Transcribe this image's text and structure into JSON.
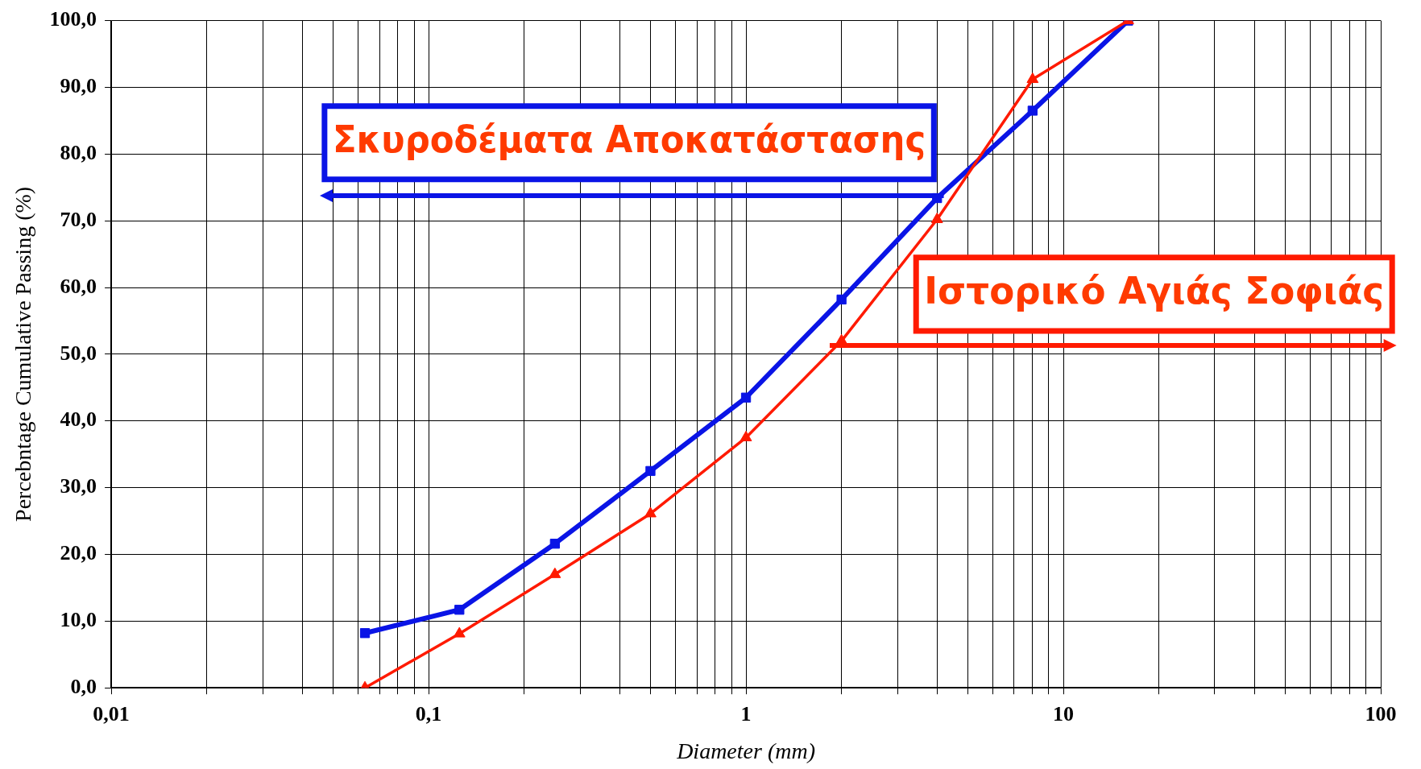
{
  "chart_data": {
    "type": "line",
    "xlabel": "Diameter (mm)",
    "ylabel": "Percebntage Cumulative Passing (%)",
    "log": "x",
    "grid": true,
    "legend": false,
    "line_style": "solid",
    "xlim": [
      0.01,
      100
    ],
    "xticks": [
      {
        "value": 0.01,
        "label": "0,01"
      },
      {
        "value": 0.02,
        "label": null
      },
      {
        "value": 0.03,
        "label": null
      },
      {
        "value": 0.04,
        "label": null
      },
      {
        "value": 0.05,
        "label": null
      },
      {
        "value": 0.06,
        "label": null
      },
      {
        "value": 0.07,
        "label": null
      },
      {
        "value": 0.08,
        "label": null
      },
      {
        "value": 0.09,
        "label": null
      },
      {
        "value": 0.1,
        "label": "0,1"
      },
      {
        "value": 0.2,
        "label": null
      },
      {
        "value": 0.3,
        "label": null
      },
      {
        "value": 0.4,
        "label": null
      },
      {
        "value": 0.5,
        "label": null
      },
      {
        "value": 0.6,
        "label": null
      },
      {
        "value": 0.7,
        "label": null
      },
      {
        "value": 0.8,
        "label": null
      },
      {
        "value": 0.9,
        "label": null
      },
      1,
      {
        "value": 2,
        "label": null
      },
      {
        "value": 3,
        "label": null
      },
      {
        "value": 4,
        "label": null
      },
      {
        "value": 5,
        "label": null
      },
      {
        "value": 6,
        "label": null
      },
      {
        "value": 7,
        "label": null
      },
      {
        "value": 8,
        "label": null
      },
      {
        "value": 9,
        "label": null
      },
      10,
      {
        "value": 20,
        "label": null
      },
      {
        "value": 30,
        "label": null
      },
      {
        "value": 40,
        "label": null
      },
      {
        "value": 50,
        "label": null
      },
      {
        "value": 60,
        "label": null
      },
      {
        "value": 70,
        "label": null
      },
      {
        "value": 80,
        "label": null
      },
      {
        "value": 90,
        "label": null
      },
      100
    ],
    "ylim": [
      0,
      100
    ],
    "yticks": [
      {
        "value": 0,
        "label": "0,0"
      },
      {
        "value": 10,
        "label": "10,0"
      },
      {
        "value": 20,
        "label": "20,0"
      },
      {
        "value": 30,
        "label": "30,0"
      },
      {
        "value": 40,
        "label": "40,0"
      },
      {
        "value": 50,
        "label": "50,0"
      },
      {
        "value": 60,
        "label": "60,0"
      },
      {
        "value": 70,
        "label": "70,0"
      },
      {
        "value": 80,
        "label": "80,0"
      },
      {
        "value": 90,
        "label": "90,0"
      },
      {
        "value": 100,
        "label": "100,0"
      }
    ],
    "series": [
      {
        "name": "Σκυροδέματα Αποκατάστασης",
        "color": "#0a14e6",
        "marker": "square",
        "x": [
          0.063,
          0.125,
          0.25,
          0.5,
          1,
          2,
          4,
          8,
          16
        ],
        "values": [
          8.2,
          11.7,
          21.6,
          32.5,
          43.5,
          58.2,
          73.4,
          86.5,
          100
        ]
      },
      {
        "name": "Ιστορικό Αγιάς Σοφιάς",
        "color": "#ff1a00",
        "marker": "triangle",
        "x": [
          0.063,
          0.125,
          0.25,
          0.5,
          1,
          2,
          4,
          8,
          16
        ],
        "values": [
          0,
          8.1,
          17.0,
          26.1,
          37.5,
          52.0,
          70.2,
          91.2,
          100
        ]
      }
    ]
  }
}
